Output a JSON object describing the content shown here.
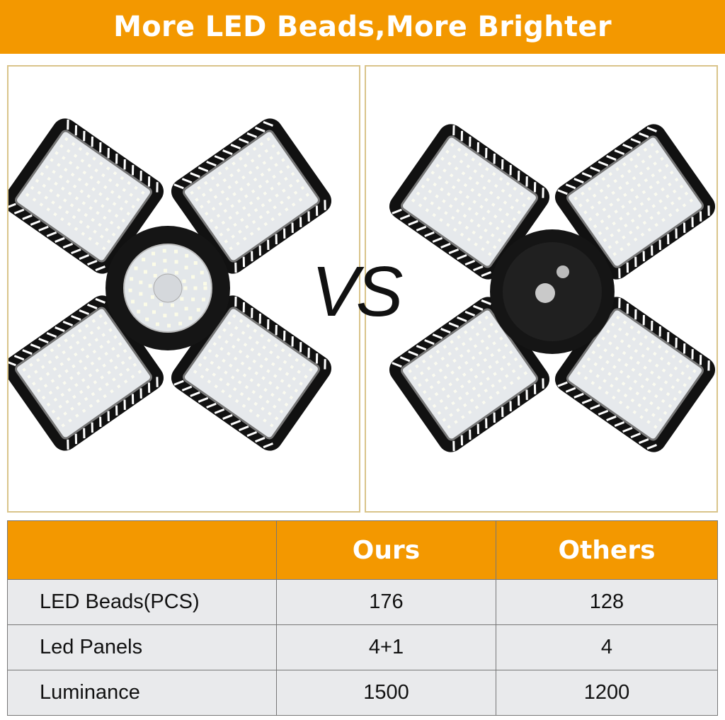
{
  "banner": {
    "title": "More LED Beads,More Brighter"
  },
  "comparison": {
    "vs_label": "VS"
  },
  "colors": {
    "accent": "#f39800",
    "row_bg": "#e9eaec",
    "panel_border": "#d9c48a"
  },
  "table": {
    "headers": [
      "",
      "Ours",
      "Others"
    ],
    "rows": [
      {
        "label": "LED Beads(PCS)",
        "ours": "176",
        "others": "128"
      },
      {
        "label": "Led Panels",
        "ours": "4+1",
        "others": "4"
      },
      {
        "label": "Luminance",
        "ours": "1500",
        "others": "1200"
      }
    ]
  }
}
